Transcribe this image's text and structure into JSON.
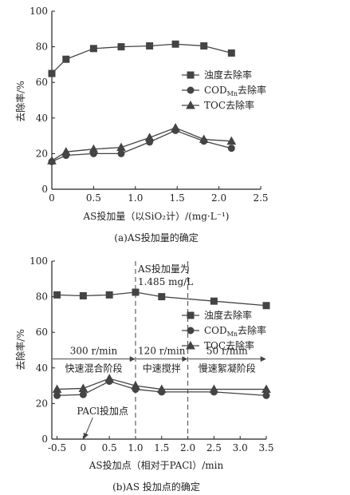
{
  "chart_data": [
    {
      "type": "line",
      "xlabel": "AS投加量（以SiO₂计）/(mg·L⁻¹)",
      "ylabel": "去除率/%",
      "caption": "(a)AS投加量的确定",
      "xlim": [
        0,
        2.5
      ],
      "ylim": [
        0,
        100
      ],
      "xticks": [
        "0",
        "0.5",
        "1.0",
        "1.5",
        "2.0",
        "2.5"
      ],
      "yticks": [
        "0",
        "20",
        "40",
        "60",
        "80",
        "100"
      ],
      "legend_position": "right",
      "series": [
        {
          "name": "浊度去除率",
          "marker": "square",
          "x": [
            0,
            0.17,
            0.5,
            0.83,
            1.17,
            1.48,
            1.82,
            2.15
          ],
          "y": [
            65,
            73,
            79,
            80,
            80.5,
            81.5,
            80.5,
            76.5
          ]
        },
        {
          "name": "COD",
          "name_sub": "Mn",
          "name_suffix": "去除率",
          "marker": "circle",
          "x": [
            0,
            0.17,
            0.5,
            0.83,
            1.17,
            1.48,
            1.82,
            2.15
          ],
          "y": [
            15.5,
            19,
            20,
            20,
            26.5,
            33,
            27,
            23
          ]
        },
        {
          "name": "TOC去除率",
          "marker": "triangle",
          "x": [
            0,
            0.17,
            0.5,
            0.83,
            1.17,
            1.48,
            1.82,
            2.15
          ],
          "y": [
            16,
            21,
            22.5,
            23.5,
            29,
            34.5,
            28,
            27
          ]
        }
      ]
    },
    {
      "type": "line",
      "xlabel": "AS投加点（相对于PACl）/min",
      "ylabel": "去除率/%",
      "caption": "(b)AS 投加点的确定",
      "xlim": [
        -0.6,
        3.5
      ],
      "ylim": [
        0,
        100
      ],
      "xticks": [
        "-0.5",
        "0",
        "0.5",
        "1.0",
        "1.5",
        "2.0",
        "2.5",
        "3.0",
        "3.5"
      ],
      "yticks": [
        "0",
        "20",
        "40",
        "60",
        "80",
        "100"
      ],
      "legend_position": "right",
      "series": [
        {
          "name": "浊度去除率",
          "marker": "square",
          "x": [
            -0.5,
            0,
            0.5,
            1.0,
            1.5,
            2.5,
            3.5
          ],
          "y": [
            81,
            80.5,
            81,
            82.5,
            80,
            77.5,
            75
          ]
        },
        {
          "name": "COD",
          "name_sub": "Mn",
          "name_suffix": "去除率",
          "marker": "circle",
          "x": [
            -0.5,
            0,
            0.5,
            1.0,
            1.5,
            2.5,
            3.5
          ],
          "y": [
            24.5,
            25,
            32.5,
            28,
            26.5,
            26.5,
            24.5
          ]
        },
        {
          "name": "TOC去除率",
          "marker": "triangle",
          "x": [
            -0.5,
            0,
            0.5,
            1.0,
            1.5,
            2.5,
            3.5
          ],
          "y": [
            28,
            28.5,
            34,
            30,
            28,
            28,
            28
          ]
        }
      ],
      "annotations": {
        "top": "AS投加量为",
        "top2": "1.485 mg/L",
        "pacl": "PACl投加点",
        "stages": [
          {
            "speed": "300 r/min",
            "name": "快速混合阶段",
            "from": -0.6,
            "to": 1.0
          },
          {
            "speed": "120 r/min",
            "name": "中速搅拌",
            "from": 1.0,
            "to": 2.0
          },
          {
            "speed": "50 r/min",
            "name": "慢速絮凝阶段",
            "from": 2.0,
            "to": 3.5
          }
        ],
        "vlines": [
          1.0,
          2.0
        ],
        "stage_arrow_y": 45
      }
    }
  ]
}
